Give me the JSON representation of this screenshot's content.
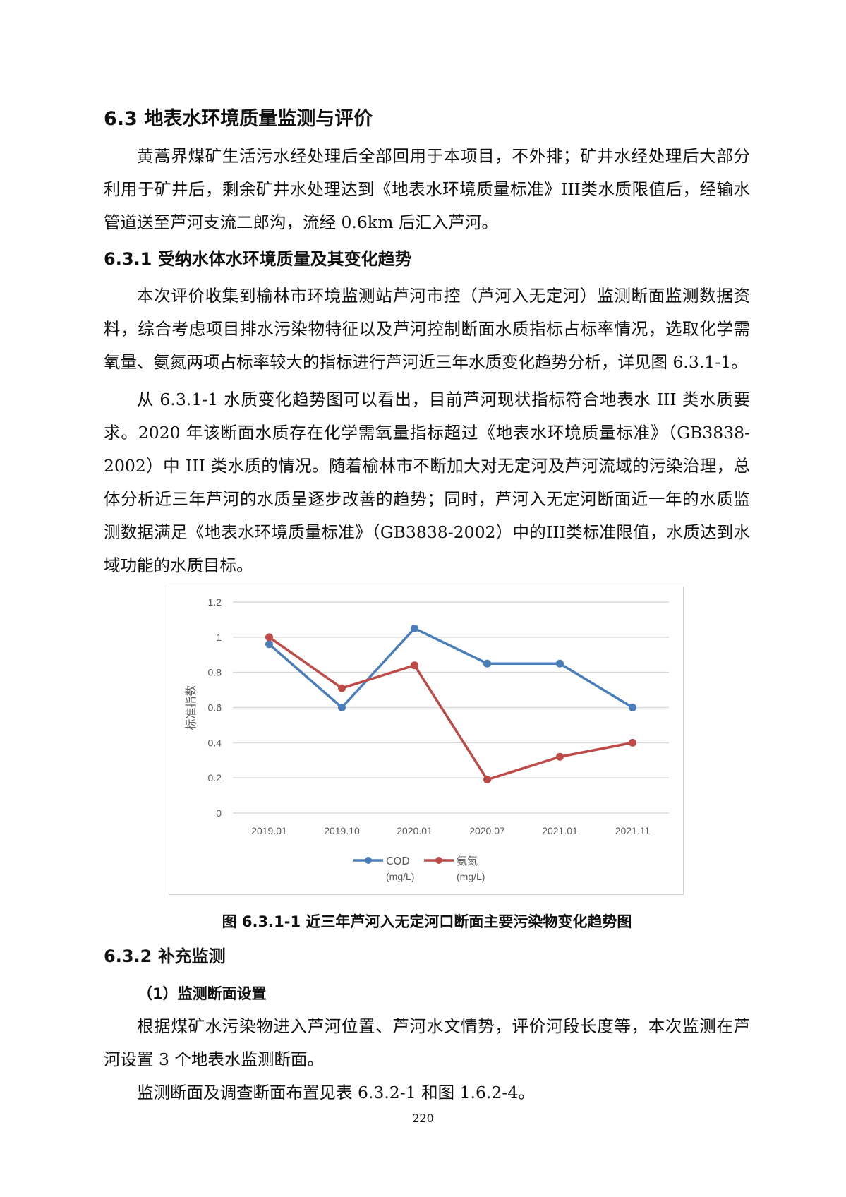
{
  "section_6_3": {
    "title": "6.3 地表水环境质量监测与评价",
    "para1": "黄蒿界煤矿生活污水经处理后全部回用于本项目，不外排；矿井水经处理后大部分利用于矿井后，剩余矿井水处理达到《地表水环境质量标准》III类水质限值后，经输水管道送至芦河支流二郎沟，流经 0.6km 后汇入芦河。"
  },
  "section_6_3_1": {
    "title": "6.3.1  受纳水体水环境质量及其变化趋势",
    "para1": "本次评价收集到榆林市环境监测站芦河市控（芦河入无定河）监测断面监测数据资料，综合考虑项目排水污染物特征以及芦河控制断面水质指标占标率情况，选取化学需氧量、氨氮两项占标率较大的指标进行芦河近三年水质变化趋势分析，详见图 6.3.1-1。",
    "para2": "从 6.3.1-1 水质变化趋势图可以看出，目前芦河现状指标符合地表水 III 类水质要求。2020 年该断面水质存在化学需氧量指标超过《地表水环境质量标准》（GB3838-2002）中 III 类水质的情况。随着榆林市不断加大对无定河及芦河流域的污染治理，总体分析近三年芦河的水质呈逐步改善的趋势；同时，芦河入无定河断面近一年的水质监测数据满足《地表水环境质量标准》（GB3838-2002）中的III类标准限值，水质达到水域功能的水质目标。",
    "figure_caption": "图 6.3.1-1    近三年芦河入无定河口断面主要污染物变化趋势图"
  },
  "chart_data": {
    "type": "line",
    "categories": [
      "2019.01",
      "2019.10",
      "2020.01",
      "2020.07",
      "2021.01",
      "2021.11"
    ],
    "ylabel": "标准指数",
    "ylim": [
      0,
      1.2
    ],
    "yticks": [
      "0",
      "0.2",
      "0.4",
      "0.6",
      "0.8",
      "1",
      "1.2"
    ],
    "grid": true,
    "legend_position": "bottom",
    "series": [
      {
        "name": "COD",
        "unit": "(mg/L)",
        "color": "#4a7ebb",
        "values": [
          0.96,
          0.6,
          1.05,
          0.85,
          0.85,
          0.6
        ]
      },
      {
        "name": "氨氮",
        "unit": "(mg/L)",
        "color": "#be4b48",
        "values": [
          1.0,
          0.71,
          0.84,
          0.19,
          0.32,
          0.4
        ]
      }
    ]
  },
  "section_6_3_2": {
    "title": "6.3.2  补充监测",
    "sub1": "（1）监测断面设置",
    "para1": "根据煤矿水污染物进入芦河位置、芦河水文情势，评价河段长度等，本次监测在芦河设置 3 个地表水监测断面。",
    "para2": "监测断面及调查断面布置见表 6.3.2-1 和图 1.6.2-4。"
  },
  "page_number": "220"
}
